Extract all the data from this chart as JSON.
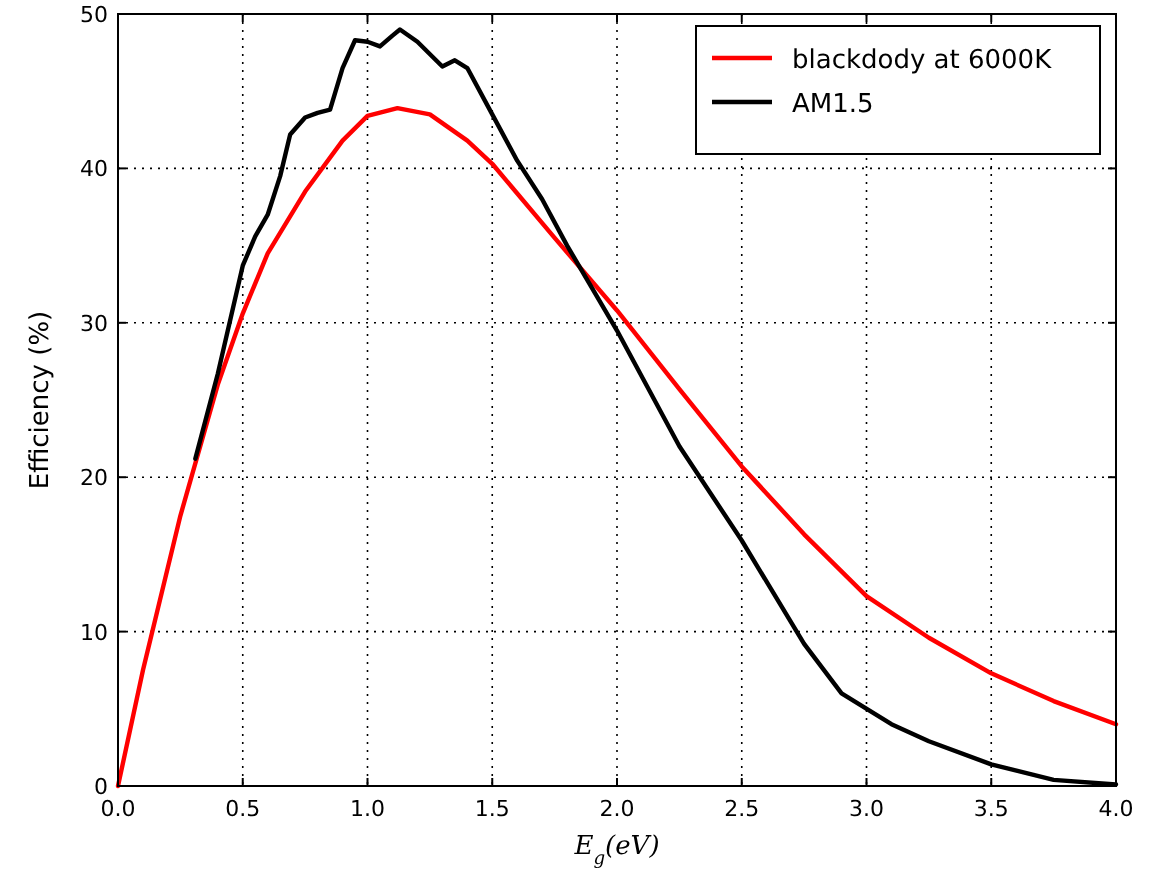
{
  "chart_data": {
    "type": "line",
    "xlabel": "E$_{g}$(eV)",
    "ylabel": "Efficiency (%)",
    "xlim": [
      0,
      4
    ],
    "ylim": [
      0,
      50
    ],
    "xticks": [
      {
        "value": 0,
        "label": "0.0"
      },
      {
        "value": 0.5,
        "label": "0.5"
      },
      {
        "value": 1,
        "label": "1.0"
      },
      {
        "value": 1.5,
        "label": "1.5"
      },
      {
        "value": 2,
        "label": "2.0"
      },
      {
        "value": 2.5,
        "label": "2.5"
      },
      {
        "value": 3,
        "label": "3.0"
      },
      {
        "value": 3.5,
        "label": "3.5"
      },
      {
        "value": 4,
        "label": "4.0"
      }
    ],
    "yticks": [
      0,
      10,
      20,
      30,
      40,
      50
    ],
    "grid": true,
    "legend": "top right",
    "line_style": "solid",
    "marker": "none",
    "series": [
      {
        "name": "blackdody at 6000K",
        "color": "#ff0000",
        "x": [
          0,
          0.1,
          0.25,
          0.4,
          0.5,
          0.6,
          0.75,
          0.9,
          1,
          1.12,
          1.25,
          1.4,
          1.5,
          1.75,
          2,
          2.25,
          2.5,
          2.75,
          3,
          3.25,
          3.5,
          3.75,
          4
        ],
        "values": [
          0,
          7.5,
          17.5,
          26,
          30.6,
          34.5,
          38.5,
          41.8,
          43.4,
          43.9,
          43.5,
          41.8,
          40.3,
          35.5,
          30.8,
          25.7,
          20.7,
          16.3,
          12.3,
          9.6,
          7.3,
          5.5,
          4
        ]
      },
      {
        "name": "AM1.5",
        "color": "#000000",
        "x": [
          0.31,
          0.4,
          0.5,
          0.55,
          0.6,
          0.65,
          0.69,
          0.75,
          0.8,
          0.85,
          0.9,
          0.95,
          1,
          1.05,
          1.1,
          1.13,
          1.2,
          1.3,
          1.35,
          1.4,
          1.5,
          1.6,
          1.7,
          1.8,
          2,
          2.25,
          2.5,
          2.75,
          2.9,
          3.1,
          3.25,
          3.5,
          3.75,
          4
        ],
        "values": [
          21.2,
          26.7,
          33.7,
          35.6,
          37,
          39.5,
          42.2,
          43.3,
          43.6,
          43.8,
          46.5,
          48.3,
          48.2,
          47.9,
          48.6,
          49,
          48.2,
          46.6,
          47,
          46.5,
          43.5,
          40.5,
          38,
          35,
          29.5,
          22,
          15.9,
          9.2,
          6,
          4,
          2.9,
          1.4,
          0.4,
          0.1
        ]
      }
    ]
  }
}
